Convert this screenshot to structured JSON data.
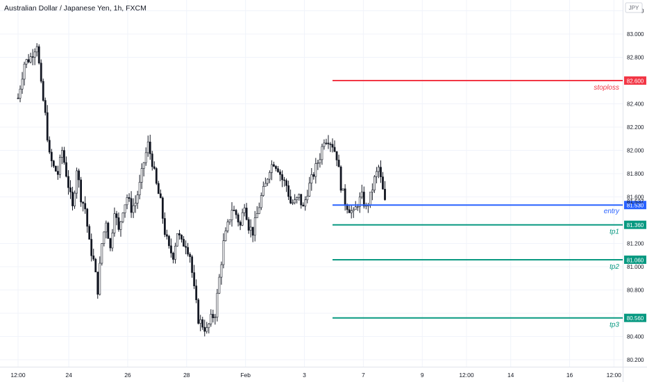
{
  "header": {
    "title": "Australian Dollar / Japanese Yen, 1h, FXCM",
    "currency_badge": "JPY"
  },
  "chart_data": {
    "type": "candlestick",
    "symbol": "AUDJPY",
    "timeframe": "1h",
    "source": "FXCM",
    "y_axis": {
      "side": "right",
      "range": [
        80.12,
        83.28
      ],
      "ticks": [
        {
          "value": 83.2,
          "label": "83.200"
        },
        {
          "value": 83.0,
          "label": "83.000"
        },
        {
          "value": 82.8,
          "label": "82.800"
        },
        {
          "value": 82.4,
          "label": "82.400"
        },
        {
          "value": 82.2,
          "label": "82.200"
        },
        {
          "value": 82.0,
          "label": "82.000"
        },
        {
          "value": 81.8,
          "label": "81.800"
        },
        {
          "value": 81.6,
          "label": "81.600"
        },
        {
          "value": 81.2,
          "label": "81.200"
        },
        {
          "value": 81.0,
          "label": "81.000"
        },
        {
          "value": 80.8,
          "label": "80.800"
        },
        {
          "value": 80.6,
          "label": "80.600"
        },
        {
          "value": 80.4,
          "label": "80.400"
        },
        {
          "value": 80.2,
          "label": "80.200"
        }
      ]
    },
    "x_axis": {
      "ticks": [
        {
          "label": "12:00",
          "slot": 0
        },
        {
          "label": "24",
          "slot": 24.2
        },
        {
          "label": "26",
          "slot": 52.3
        },
        {
          "label": "28",
          "slot": 80.4
        },
        {
          "label": "Feb",
          "slot": 108.5
        },
        {
          "label": "3",
          "slot": 136.6
        },
        {
          "label": "7",
          "slot": 164.7
        },
        {
          "label": "9",
          "slot": 192.8
        },
        {
          "label": "12:00",
          "slot": 213.9
        },
        {
          "label": "14",
          "slot": 235
        },
        {
          "label": "16",
          "slot": 263.1
        },
        {
          "label": "12:00",
          "slot": 284.2
        }
      ]
    },
    "price_path": [
      [
        0,
        82.45
      ],
      [
        3,
        82.75
      ],
      [
        6,
        82.8
      ],
      [
        9,
        82.92
      ],
      [
        11,
        82.55
      ],
      [
        13,
        82.3
      ],
      [
        15,
        81.95
      ],
      [
        17,
        81.85
      ],
      [
        19,
        81.8
      ],
      [
        21,
        82.0
      ],
      [
        23,
        81.8
      ],
      [
        26,
        81.5
      ],
      [
        28,
        81.85
      ],
      [
        30,
        81.6
      ],
      [
        32,
        81.5
      ],
      [
        34,
        81.2
      ],
      [
        36,
        81.05
      ],
      [
        38,
        80.8
      ],
      [
        40,
        81.2
      ],
      [
        42,
        81.4
      ],
      [
        44,
        81.15
      ],
      [
        46,
        81.5
      ],
      [
        48,
        81.3
      ],
      [
        50,
        81.5
      ],
      [
        52,
        81.6
      ],
      [
        54,
        81.5
      ],
      [
        56,
        81.55
      ],
      [
        58,
        81.7
      ],
      [
        60,
        81.9
      ],
      [
        62,
        82.05
      ],
      [
        64,
        81.9
      ],
      [
        66,
        81.7
      ],
      [
        68,
        81.55
      ],
      [
        70,
        81.3
      ],
      [
        72,
        81.15
      ],
      [
        74,
        81.1
      ],
      [
        76,
        81.3
      ],
      [
        78,
        81.2
      ],
      [
        80,
        81.2
      ],
      [
        82,
        81.1
      ],
      [
        84,
        80.8
      ],
      [
        86,
        80.55
      ],
      [
        88,
        80.5
      ],
      [
        90,
        80.45
      ],
      [
        92,
        80.55
      ],
      [
        94,
        80.6
      ],
      [
        96,
        80.9
      ],
      [
        98,
        81.2
      ],
      [
        100,
        81.35
      ],
      [
        102,
        81.5
      ],
      [
        104,
        81.45
      ],
      [
        106,
        81.35
      ],
      [
        108,
        81.55
      ],
      [
        110,
        81.35
      ],
      [
        112,
        81.3
      ],
      [
        114,
        81.45
      ],
      [
        116,
        81.6
      ],
      [
        118,
        81.7
      ],
      [
        120,
        81.85
      ],
      [
        122,
        81.9
      ],
      [
        124,
        81.85
      ],
      [
        126,
        81.75
      ],
      [
        128,
        81.7
      ],
      [
        130,
        81.55
      ],
      [
        132,
        81.55
      ],
      [
        134,
        81.6
      ],
      [
        136,
        81.5
      ],
      [
        138,
        81.65
      ],
      [
        140,
        81.75
      ],
      [
        142,
        81.85
      ],
      [
        144,
        81.95
      ],
      [
        146,
        82.1
      ],
      [
        148,
        82.1
      ],
      [
        150,
        82.05
      ],
      [
        152,
        81.95
      ],
      [
        154,
        81.7
      ],
      [
        156,
        81.55
      ],
      [
        158,
        81.5
      ],
      [
        160,
        81.45
      ],
      [
        162,
        81.55
      ],
      [
        164,
        81.6
      ],
      [
        166,
        81.5
      ],
      [
        168,
        81.6
      ],
      [
        170,
        81.75
      ],
      [
        172,
        81.85
      ],
      [
        174,
        81.65
      ],
      [
        175,
        81.55
      ]
    ],
    "levels": [
      {
        "name": "stoploss",
        "price": 82.6,
        "price_label": "82.600",
        "color": "#f23645",
        "label_below": true,
        "start_slot": 150
      },
      {
        "name": "entry",
        "price": 81.53,
        "price_label": "81.530",
        "color": "#2962ff",
        "label_below": false,
        "start_slot": 150
      },
      {
        "name": "tp1",
        "price": 81.36,
        "price_label": "81.360",
        "color": "#089981",
        "label_below": true,
        "start_slot": 150
      },
      {
        "name": "tp2",
        "price": 81.06,
        "price_label": "81.060",
        "color": "#089981",
        "label_below": true,
        "start_slot": 150
      },
      {
        "name": "tp3",
        "price": 80.56,
        "price_label": "80.560",
        "color": "#089981",
        "label_below": true,
        "start_slot": 150
      }
    ],
    "current_price": {
      "value": 81.537,
      "label": "81.537"
    },
    "grid": true
  }
}
